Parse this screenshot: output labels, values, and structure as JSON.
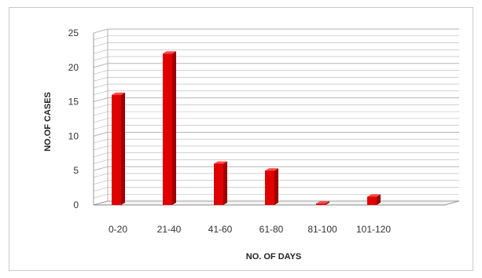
{
  "chart_data": {
    "type": "bar",
    "title": "",
    "xlabel": "NO. OF DAYS",
    "ylabel": "NO.OF CASES",
    "categories": [
      "0-20",
      "21-40",
      "41-60",
      "61-80",
      "81-100",
      "101-120"
    ],
    "values": [
      16,
      22,
      6,
      5,
      0.2,
      1.2
    ],
    "ylim": [
      0,
      25
    ],
    "yticks": [
      "0",
      "5",
      "10",
      "15",
      "20",
      "25"
    ],
    "grid": true,
    "legend": "none",
    "style": "3d",
    "colors": {
      "bar": "#e00000",
      "bar_dark": "#9e0000",
      "grid": "#b5b5b5"
    }
  }
}
